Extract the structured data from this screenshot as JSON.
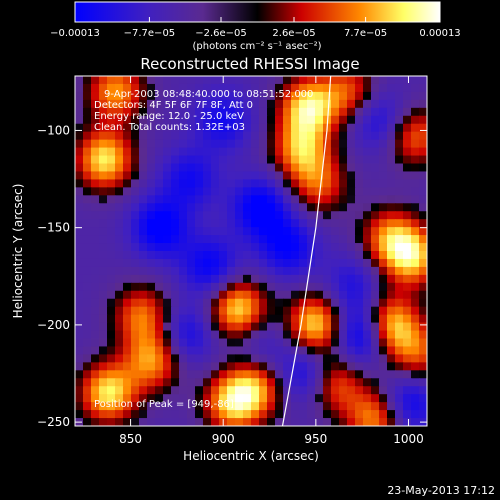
{
  "chart_data": {
    "type": "heatmap",
    "title": "Reconstructed RHESSI Image",
    "xlabel": "Heliocentric X (arcsec)",
    "ylabel": "Heliocentric Y (arcsec)",
    "xlim": [
      820,
      1010
    ],
    "ylim": [
      -252,
      -72
    ],
    "x_ticks": [
      850,
      900,
      950,
      1000
    ],
    "y_ticks": [
      -100,
      -150,
      -200,
      -250
    ],
    "x_tick_labels": [
      "850",
      "900",
      "950",
      "1000"
    ],
    "y_tick_labels": [
      "−100",
      "−150",
      "−200",
      "−250"
    ],
    "colorbar": {
      "ticks": [
        -0.00013,
        -7.7e-05,
        -2.6e-05,
        2.6e-05,
        7.7e-05,
        0.00013
      ],
      "tick_labels": [
        "−0.00013",
        "−7.7e−05",
        "−2.6e−05",
        "2.6e−05",
        "7.7e−05",
        "0.00013"
      ],
      "unit": "(photons cm⁻² s⁻¹ asec⁻²)",
      "colors": [
        "#0000ff",
        "#5a2a90",
        "#000000",
        "#cc0000",
        "#ff8800",
        "#ffff66",
        "#ffffff"
      ]
    },
    "annotations": [
      "9-Apr-2003 08:48:40.000 to 08:51:52.000",
      "Detectors: 4F 5F 6F 7F 8F, Att 0",
      "Energy range: 12.0 - 25.0 keV",
      "Clean. Total counts: 1.32E+03"
    ],
    "peak_label": "Position of Peak = [949,-86]",
    "footer": "23-May-2013 17:12",
    "sources": [
      {
        "x": 836,
        "y": -115,
        "a": 1.0
      },
      {
        "x": 842,
        "y": -80,
        "a": 0.8
      },
      {
        "x": 838,
        "y": -235,
        "a": 1.0
      },
      {
        "x": 862,
        "y": -218,
        "a": 0.8
      },
      {
        "x": 856,
        "y": -195,
        "a": 0.7
      },
      {
        "x": 905,
        "y": -240,
        "a": 0.9
      },
      {
        "x": 908,
        "y": -192,
        "a": 1.0
      },
      {
        "x": 918,
        "y": -232,
        "a": 0.7
      },
      {
        "x": 942,
        "y": -110,
        "a": 0.8
      },
      {
        "x": 946,
        "y": -88,
        "a": 1.0
      },
      {
        "x": 952,
        "y": -128,
        "a": 0.6
      },
      {
        "x": 968,
        "y": -80,
        "a": 0.6
      },
      {
        "x": 1003,
        "y": -103,
        "a": 0.7
      },
      {
        "x": 1002,
        "y": -165,
        "a": 0.9
      },
      {
        "x": 990,
        "y": -155,
        "a": 0.7
      },
      {
        "x": 950,
        "y": -200,
        "a": 1.0
      },
      {
        "x": 960,
        "y": -230,
        "a": 0.7
      },
      {
        "x": 990,
        "y": -200,
        "a": 1.0
      },
      {
        "x": 1005,
        "y": -215,
        "a": 0.6
      },
      {
        "x": 982,
        "y": -248,
        "a": 0.8
      },
      {
        "x": 866,
        "y": -150,
        "a": -0.7
      },
      {
        "x": 882,
        "y": -125,
        "a": -0.5
      },
      {
        "x": 893,
        "y": -170,
        "a": -0.6
      },
      {
        "x": 920,
        "y": -140,
        "a": -0.7
      },
      {
        "x": 935,
        "y": -160,
        "a": -0.6
      },
      {
        "x": 900,
        "y": -95,
        "a": -0.5
      },
      {
        "x": 880,
        "y": -205,
        "a": -0.5
      },
      {
        "x": 945,
        "y": -225,
        "a": -0.6
      },
      {
        "x": 975,
        "y": -205,
        "a": -0.8
      },
      {
        "x": 1000,
        "y": -240,
        "a": -0.6
      },
      {
        "x": 985,
        "y": -95,
        "a": -0.5
      },
      {
        "x": 970,
        "y": -180,
        "a": -0.4
      },
      {
        "x": 920,
        "y": -210,
        "a": -0.3
      }
    ],
    "limb_curve": [
      [
        932,
        -252
      ],
      [
        942,
        -200
      ],
      [
        950,
        -150
      ],
      [
        956,
        -100
      ],
      [
        958,
        -72
      ]
    ]
  }
}
